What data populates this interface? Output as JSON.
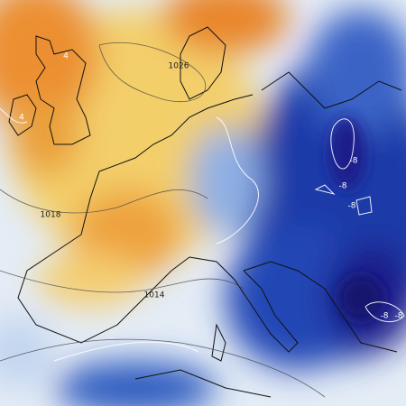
{
  "isobar_labels": [
    "1026",
    "1018",
    "1014"
  ],
  "isotherm_labels": [
    "4",
    "4",
    "-8",
    "-8",
    "-8",
    "-8",
    "-8"
  ]
}
